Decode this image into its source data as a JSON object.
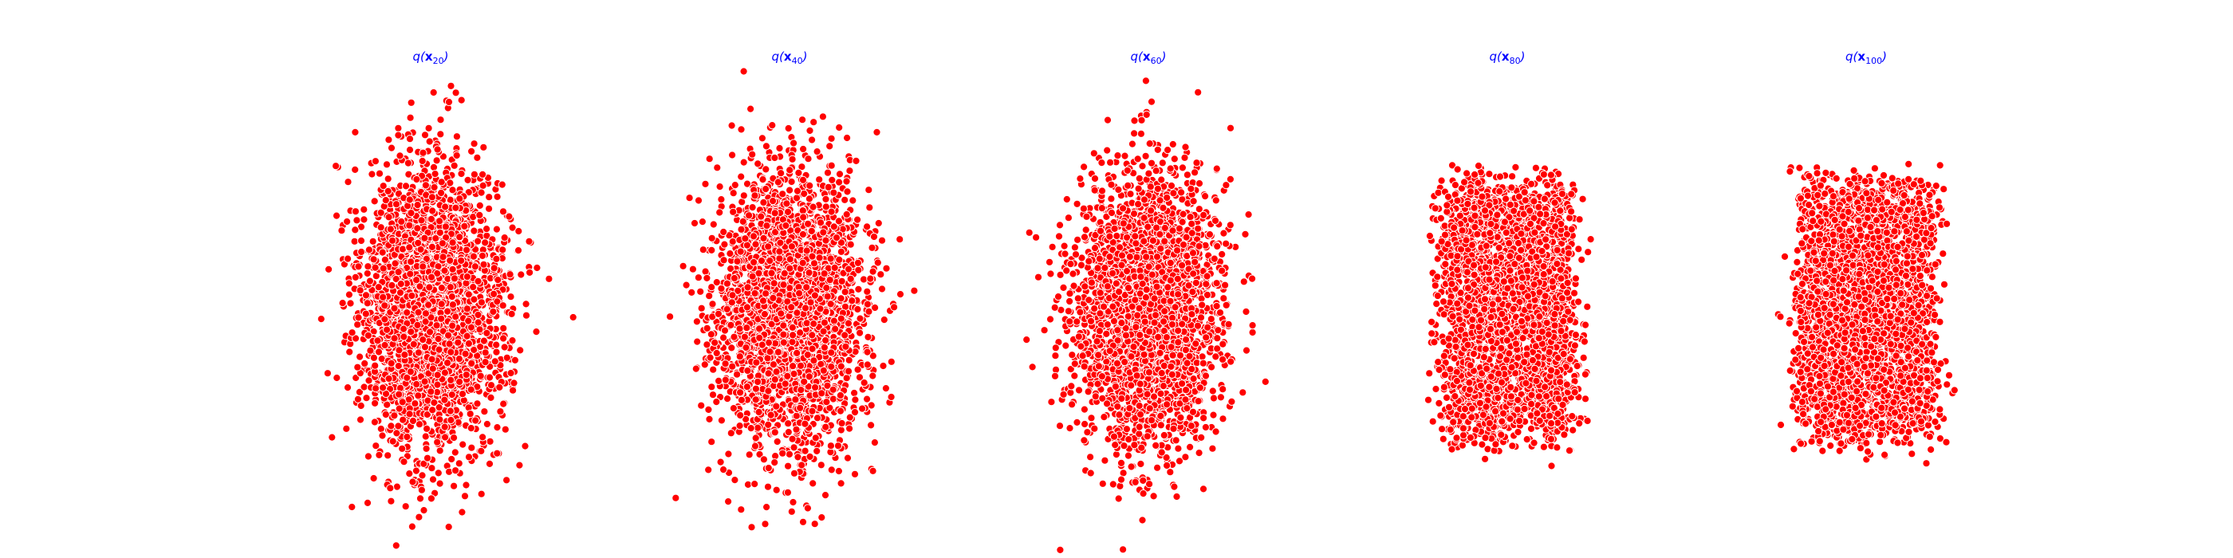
{
  "chart_data": [
    {
      "type": "scatter",
      "title_parts": {
        "prefix": "q(",
        "symbol": "x",
        "subscript": "20",
        "suffix": ")"
      },
      "marker_color": "#ff0000",
      "marker_edge_color": "#ffffff",
      "axes_visible": false,
      "grid": false,
      "xlim": [
        -3.6,
        3.6
      ],
      "ylim": [
        -3.3,
        3.3
      ],
      "distribution": {
        "x_spread": 0.78,
        "y_spread": 1.05,
        "clusters": 1
      },
      "n_points": 3000,
      "seed": 20
    },
    {
      "type": "scatter",
      "title_parts": {
        "prefix": "q(",
        "symbol": "x",
        "subscript": "40",
        "suffix": ")"
      },
      "marker_color": "#ff0000",
      "marker_edge_color": "#ffffff",
      "axes_visible": false,
      "grid": false,
      "xlim": [
        -3.6,
        3.6
      ],
      "ylim": [
        -3.3,
        3.3
      ],
      "distribution": {
        "x_spread": 0.82,
        "y_spread": 1.0,
        "clusters": 1
      },
      "n_points": 3000,
      "seed": 40
    },
    {
      "type": "scatter",
      "title_parts": {
        "prefix": "q(",
        "symbol": "x",
        "subscript": "60",
        "suffix": ")"
      },
      "marker_color": "#ff0000",
      "marker_edge_color": "#ffffff",
      "axes_visible": false,
      "grid": false,
      "xlim": [
        -3.6,
        3.6
      ],
      "ylim": [
        -3.3,
        3.3
      ],
      "distribution": {
        "x_spread": 0.78,
        "y_spread": 0.98,
        "clusters": 1
      },
      "n_points": 3000,
      "seed": 60
    },
    {
      "type": "scatter",
      "title_parts": {
        "prefix": "q(",
        "symbol": "x",
        "subscript": "80",
        "suffix": ")"
      },
      "marker_color": "#ff0000",
      "marker_edge_color": "#ffffff",
      "axes_visible": false,
      "grid": false,
      "xlim": [
        -3.6,
        3.6
      ],
      "ylim": [
        -3.3,
        3.3
      ],
      "distribution": {
        "x_spread": 0.85,
        "y_spread": 1.0,
        "clusters": 2
      },
      "n_points": 3000,
      "seed": 80
    },
    {
      "type": "scatter",
      "title_parts": {
        "prefix": "q(",
        "symbol": "x",
        "subscript": "100",
        "suffix": ")"
      },
      "marker_color": "#ff0000",
      "marker_edge_color": "#ffffff",
      "axes_visible": false,
      "grid": false,
      "xlim": [
        -3.6,
        3.6
      ],
      "ylim": [
        -3.3,
        3.3
      ],
      "distribution": {
        "x_spread": 0.88,
        "y_spread": 1.0,
        "clusters": 2
      },
      "n_points": 3000,
      "seed": 100
    }
  ]
}
